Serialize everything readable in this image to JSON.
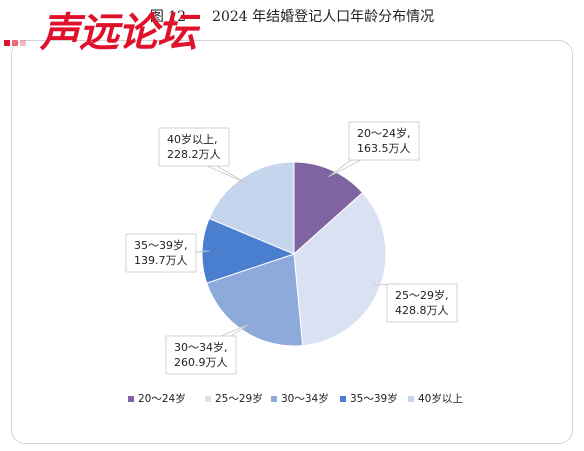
{
  "figure": {
    "number": "图 12",
    "title": "2024 年结婚登记人口年龄分布情况"
  },
  "chart_data": {
    "type": "pie",
    "title": "2024 年结婚登记人口年龄分布情况",
    "unit": "万人",
    "slices": [
      {
        "name": "20～24岁",
        "value": 163.5,
        "label_lines": [
          "20～24岁,",
          "163.5万人"
        ],
        "color": "#8064a2"
      },
      {
        "name": "25～29岁",
        "value": 428.8,
        "label_lines": [
          "25～29岁,",
          "428.8万人"
        ],
        "color": "#d9e1f2"
      },
      {
        "name": "30～34岁",
        "value": 260.9,
        "label_lines": [
          "30～34岁,",
          "260.9万人"
        ],
        "color": "#8eaadb"
      },
      {
        "name": "35～39岁",
        "value": 139.7,
        "label_lines": [
          "35～39岁,",
          "139.7万人"
        ],
        "color": "#4a7fd0"
      },
      {
        "name": "40岁以上",
        "value": 228.2,
        "label_lines": [
          "40岁以上,",
          "228.2万人"
        ],
        "color": "#c5d5ee"
      }
    ],
    "legend_position": "bottom"
  },
  "watermark": {
    "text": "声远论坛",
    "color": "#e0112b"
  }
}
